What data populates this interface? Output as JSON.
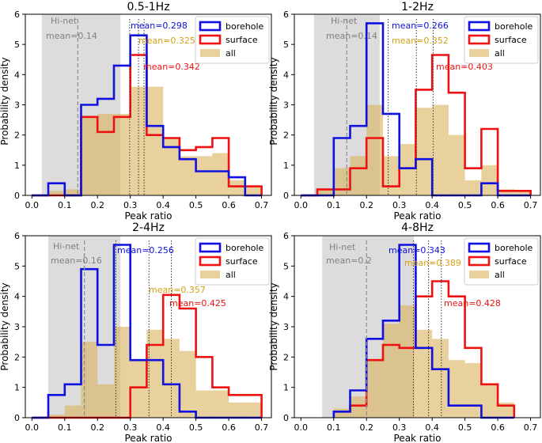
{
  "figure": {
    "ylabel": "Probability density",
    "xlabel": "Peak ratio"
  },
  "legend": {
    "borehole": "borehole",
    "surface": "surface",
    "all": "all"
  },
  "colors": {
    "borehole": "#1010e0",
    "surface": "#ee1111",
    "all": "#d9b25a",
    "hinet_band": "#dcdcdc",
    "hinet_text": "#808080",
    "all_mean_text": "#d4a017"
  },
  "chart_data": [
    {
      "type": "bar",
      "title": "0.5-1Hz",
      "xlabel": "Peak ratio",
      "ylabel": "Probability density",
      "xlim": [
        -0.02,
        0.73
      ],
      "ylim": [
        0,
        6.0
      ],
      "xticks": [
        "0.0",
        "0.1",
        "0.2",
        "0.3",
        "0.4",
        "0.5",
        "0.6",
        "0.7"
      ],
      "yticks": [
        "0",
        "1",
        "2",
        "3",
        "4",
        "5",
        "6"
      ],
      "bin_edges": [
        0.0,
        0.05,
        0.1,
        0.15,
        0.2,
        0.25,
        0.3,
        0.35,
        0.4,
        0.45,
        0.5,
        0.55,
        0.6,
        0.65,
        0.7
      ],
      "series": [
        {
          "name": "all",
          "values": [
            0.0,
            0.15,
            0.2,
            2.6,
            2.7,
            2.7,
            3.6,
            3.6,
            1.9,
            1.3,
            1.3,
            1.4,
            0.5,
            0.3
          ]
        },
        {
          "name": "borehole",
          "values": [
            0.0,
            0.4,
            0.0,
            3.0,
            3.2,
            4.3,
            5.3,
            2.3,
            1.6,
            1.2,
            0.8,
            0.8,
            0.6,
            0.0
          ]
        },
        {
          "name": "surface",
          "values": [
            0.0,
            0.0,
            0.0,
            2.6,
            2.1,
            2.6,
            4.65,
            2.0,
            1.9,
            1.5,
            1.6,
            1.9,
            0.3,
            0.3
          ]
        }
      ],
      "hinet_range": [
        0.03,
        0.27
      ],
      "hinet_label": "Hi-net",
      "hinet_mean": 0.14,
      "hinet_mean_label": "mean=0.14",
      "means": {
        "borehole": 0.298,
        "all": 0.325,
        "surface": 0.342
      },
      "mean_labels": {
        "borehole": "mean=0.298",
        "all": "mean=0.325",
        "surface": "mean=0.342"
      }
    },
    {
      "type": "bar",
      "title": "1-2Hz",
      "xlabel": "Peak ratio",
      "ylabel": "Probability density",
      "xlim": [
        -0.02,
        0.73
      ],
      "ylim": [
        0,
        6.0
      ],
      "xticks": [
        "0.0",
        "0.1",
        "0.2",
        "0.3",
        "0.4",
        "0.5",
        "0.6",
        "0.7"
      ],
      "yticks": [
        "0",
        "1",
        "2",
        "3",
        "4",
        "5",
        "6"
      ],
      "bin_edges": [
        0.0,
        0.05,
        0.1,
        0.15,
        0.2,
        0.25,
        0.3,
        0.35,
        0.4,
        0.45,
        0.5,
        0.55,
        0.6,
        0.65,
        0.7
      ],
      "series": [
        {
          "name": "all",
          "values": [
            0.0,
            0.2,
            0.9,
            1.3,
            3.0,
            1.3,
            1.7,
            2.9,
            3.0,
            2.0,
            0.5,
            1.0,
            0.2,
            0.15
          ]
        },
        {
          "name": "borehole",
          "values": [
            0.0,
            0.0,
            1.9,
            2.3,
            5.7,
            2.7,
            0.9,
            1.2,
            0.0,
            0.0,
            0.0,
            0.4,
            0.0,
            0.0
          ]
        },
        {
          "name": "surface",
          "values": [
            0.0,
            0.2,
            0.2,
            0.9,
            1.9,
            0.3,
            0.9,
            3.5,
            4.65,
            3.4,
            0.9,
            2.2,
            0.15,
            0.15
          ]
        }
      ],
      "hinet_range": [
        0.04,
        0.24
      ],
      "hinet_label": "Hi-net",
      "hinet_mean": 0.14,
      "hinet_mean_label": "mean=0.14",
      "means": {
        "borehole": 0.266,
        "all": 0.352,
        "surface": 0.403
      },
      "mean_labels": {
        "borehole": "mean=0.266",
        "all": "mean=0.352",
        "surface": "mean=0.403"
      }
    },
    {
      "type": "bar",
      "title": "2-4Hz",
      "xlabel": "Peak ratio",
      "ylabel": "Probability density",
      "xlim": [
        -0.02,
        0.73
      ],
      "ylim": [
        0,
        6.0
      ],
      "xticks": [
        "0.0",
        "0.1",
        "0.2",
        "0.3",
        "0.4",
        "0.5",
        "0.6",
        "0.7"
      ],
      "yticks": [
        "0",
        "1",
        "2",
        "3",
        "4",
        "5",
        "6"
      ],
      "bin_edges": [
        0.0,
        0.05,
        0.1,
        0.15,
        0.2,
        0.25,
        0.3,
        0.35,
        0.4,
        0.45,
        0.5,
        0.55,
        0.6,
        0.65,
        0.7
      ],
      "series": [
        {
          "name": "all",
          "values": [
            0.0,
            0.1,
            0.4,
            2.5,
            1.1,
            3.0,
            1.9,
            2.9,
            2.6,
            2.2,
            0.9,
            0.9,
            0.5,
            0.5
          ]
        },
        {
          "name": "borehole",
          "values": [
            0.0,
            0.75,
            1.1,
            4.9,
            2.4,
            5.7,
            1.9,
            1.9,
            1.1,
            0.2,
            0.0,
            0.0,
            0.0,
            0.0
          ]
        },
        {
          "name": "surface",
          "values": [
            0.0,
            0.0,
            0.0,
            0.0,
            0.0,
            0.0,
            1.0,
            2.4,
            4.05,
            3.6,
            2.0,
            1.0,
            0.75,
            0.75
          ]
        }
      ],
      "hinet_range": [
        0.05,
        0.27
      ],
      "hinet_label": "Hi-net",
      "hinet_mean": 0.16,
      "hinet_mean_label": "mean=0.16",
      "means": {
        "borehole": 0.256,
        "all": 0.357,
        "surface": 0.425
      },
      "mean_labels": {
        "borehole": "mean=0.256",
        "all": "mean=0.357",
        "surface": "mean=0.425"
      }
    },
    {
      "type": "bar",
      "title": "4-8Hz",
      "xlabel": "Peak ratio",
      "ylabel": "Probability density",
      "xlim": [
        -0.02,
        0.73
      ],
      "ylim": [
        0,
        6.0
      ],
      "xticks": [
        "0.0",
        "0.1",
        "0.2",
        "0.3",
        "0.4",
        "0.5",
        "0.6",
        "0.7"
      ],
      "yticks": [
        "0",
        "1",
        "2",
        "3",
        "4",
        "5",
        "6"
      ],
      "bin_edges": [
        0.1,
        0.15,
        0.2,
        0.25,
        0.3,
        0.35,
        0.4,
        0.45,
        0.5,
        0.55,
        0.6,
        0.65
      ],
      "series": [
        {
          "name": "all",
          "values": [
            0.3,
            0.7,
            1.9,
            3.1,
            3.7,
            2.9,
            2.6,
            1.9,
            1.8,
            1.1,
            0.5
          ]
        },
        {
          "name": "borehole",
          "values": [
            0.2,
            0.9,
            2.6,
            3.2,
            5.7,
            2.3,
            1.6,
            0.4,
            0.4,
            0.0,
            0.0
          ]
        },
        {
          "name": "surface",
          "values": [
            0.2,
            0.4,
            1.9,
            2.4,
            2.3,
            4.0,
            4.5,
            4.0,
            2.3,
            1.1,
            0.4
          ]
        }
      ],
      "hinet_range": [
        0.065,
        0.345
      ],
      "hinet_label": "Hi-net",
      "hinet_mean": 0.2,
      "hinet_mean_label": "mean=0.2",
      "means": {
        "borehole": 0.343,
        "all": 0.389,
        "surface": 0.428
      },
      "mean_labels": {
        "borehole": "mean=0.343",
        "all": "mean=0.389",
        "surface": "mean=0.428"
      }
    }
  ]
}
